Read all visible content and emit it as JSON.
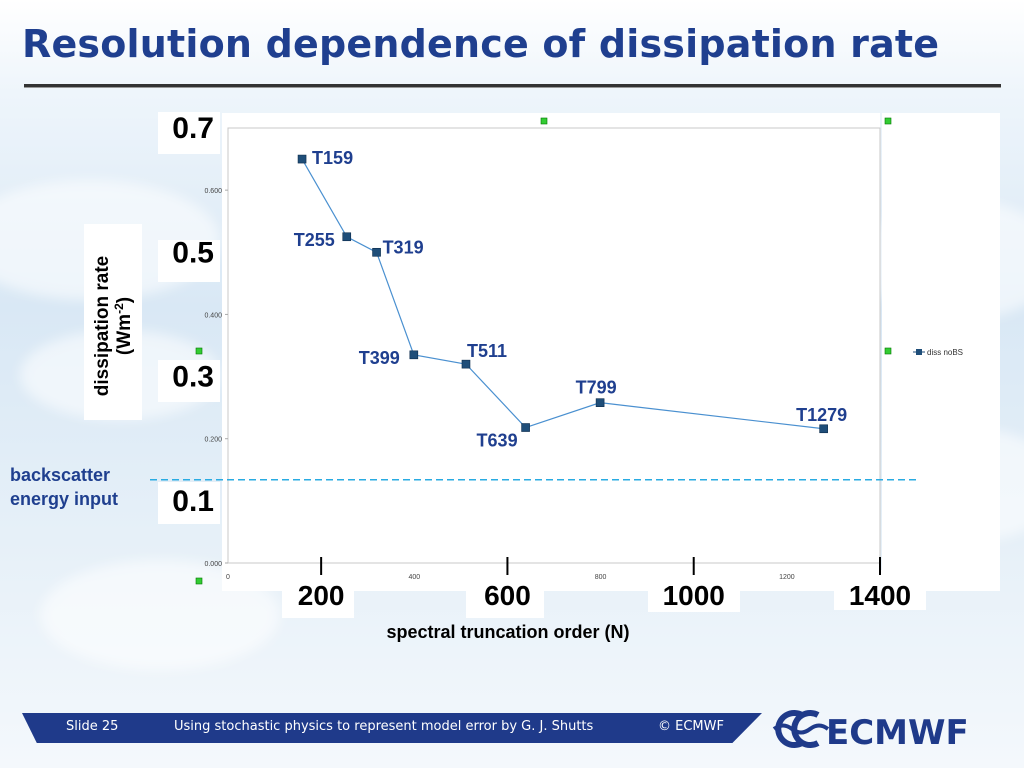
{
  "slide": {
    "title": "Resolution dependence of dissipation rate"
  },
  "chart_data": {
    "type": "line",
    "title": "",
    "xlabel": "spectral truncation order (N)",
    "ylabel_line1": "dissipation rate",
    "ylabel_line2": "(Wm",
    "ylabel_sup": "-2",
    "ylabel_close": ")",
    "xlim": [
      0,
      1400
    ],
    "ylim": [
      0,
      0.7
    ],
    "grid": false,
    "legend_position": "right",
    "series": [
      {
        "name": "diss noBS",
        "color": "#1f4e79",
        "points": [
          {
            "x": 159,
            "y": 0.65,
            "label": "T159"
          },
          {
            "x": 255,
            "y": 0.525,
            "label": "T255"
          },
          {
            "x": 319,
            "y": 0.5,
            "label": "T319"
          },
          {
            "x": 399,
            "y": 0.335,
            "label": "T399"
          },
          {
            "x": 511,
            "y": 0.32,
            "label": "T511"
          },
          {
            "x": 639,
            "y": 0.218,
            "label": "T639"
          },
          {
            "x": 799,
            "y": 0.258,
            "label": "T799"
          },
          {
            "x": 1279,
            "y": 0.216,
            "label": "T1279"
          }
        ]
      }
    ],
    "small_y_ticks": [
      "0.000",
      "0.200",
      "0.400",
      "0.600"
    ],
    "small_x_ticks": [
      "0",
      "400",
      "800",
      "1200"
    ],
    "big_y_ticks": [
      "0.1",
      "0.3",
      "0.5",
      "0.7"
    ],
    "big_x_ticks": [
      "200",
      "600",
      "1000",
      "1400"
    ],
    "reference_line": {
      "y": 0.134,
      "label_line1": "backscatter",
      "label_line2": "energy input",
      "color": "#29abe2"
    }
  },
  "footer": {
    "slide_number": "Slide 25",
    "text": "Using stochastic physics to represent model error  by G. J. Shutts",
    "copyright": "© ECMWF",
    "logo_text": "ECMWF"
  }
}
